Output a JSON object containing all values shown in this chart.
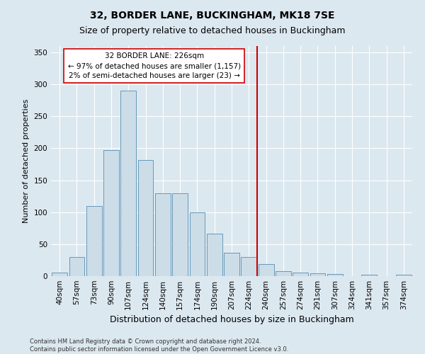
{
  "title": "32, BORDER LANE, BUCKINGHAM, MK18 7SE",
  "subtitle": "Size of property relative to detached houses in Buckingham",
  "xlabel": "Distribution of detached houses by size in Buckingham",
  "ylabel": "Number of detached properties",
  "categories": [
    "40sqm",
    "57sqm",
    "73sqm",
    "90sqm",
    "107sqm",
    "124sqm",
    "140sqm",
    "157sqm",
    "174sqm",
    "190sqm",
    "207sqm",
    "224sqm",
    "240sqm",
    "257sqm",
    "274sqm",
    "291sqm",
    "307sqm",
    "324sqm",
    "341sqm",
    "357sqm",
    "374sqm"
  ],
  "bar_values": [
    6,
    30,
    110,
    197,
    290,
    182,
    130,
    130,
    100,
    67,
    37,
    30,
    19,
    8,
    5,
    4,
    3,
    0,
    2,
    0,
    2
  ],
  "bar_color": "#ccdde8",
  "bar_edgecolor": "#6699bb",
  "vline_color": "#cc0000",
  "annotation_title": "32 BORDER LANE: 226sqm",
  "annotation_line1": "← 97% of detached houses are smaller (1,157)",
  "annotation_line2": "2% of semi-detached houses are larger (23) →",
  "annotation_box_edgecolor": "#cc0000",
  "annotation_box_facecolor": "#ffffff",
  "ylim": [
    0,
    360
  ],
  "yticks": [
    0,
    50,
    100,
    150,
    200,
    250,
    300,
    350
  ],
  "footer_line1": "Contains HM Land Registry data © Crown copyright and database right 2024.",
  "footer_line2": "Contains public sector information licensed under the Open Government Licence v3.0.",
  "background_color": "#dce8f0",
  "plot_background": "#dce8f0",
  "grid_color": "#ffffff",
  "title_fontsize": 10,
  "subtitle_fontsize": 9,
  "xlabel_fontsize": 9,
  "ylabel_fontsize": 8,
  "tick_fontsize": 7.5,
  "annotation_fontsize": 7.5,
  "footer_fontsize": 6
}
